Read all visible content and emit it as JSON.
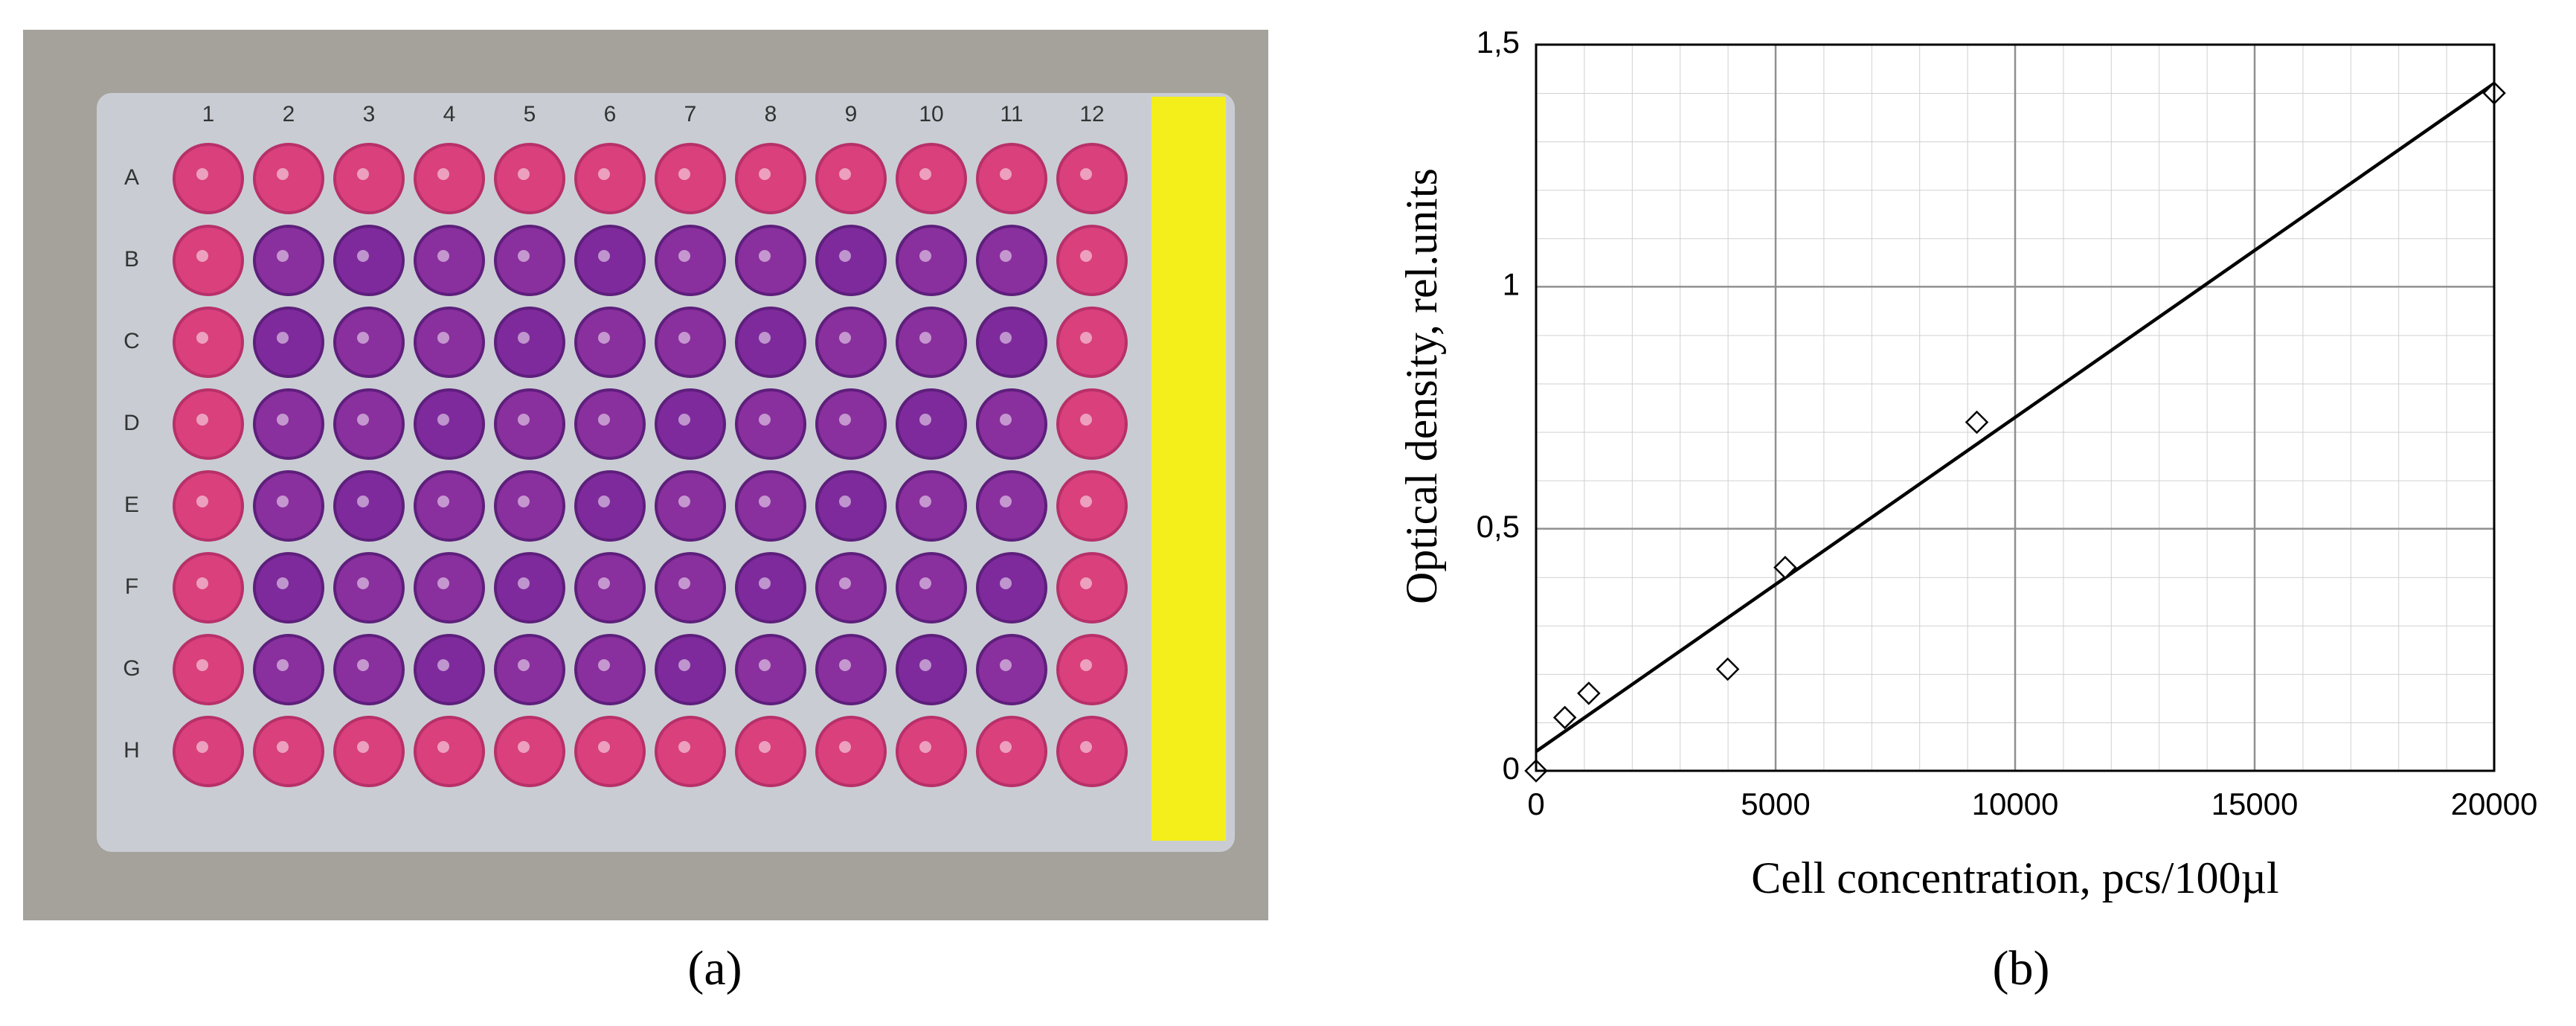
{
  "panel_a": {
    "column_labels": [
      "1",
      "2",
      "3",
      "4",
      "5",
      "6",
      "7",
      "8",
      "9",
      "10",
      "11",
      "12"
    ],
    "row_labels": [
      "A",
      "B",
      "C",
      "D",
      "E",
      "F",
      "G",
      "H"
    ],
    "caption": "(a)"
  },
  "panel_b": {
    "caption": "(b)"
  },
  "chart_data": {
    "type": "scatter",
    "x_label": "Cell concentration, pcs/100µl",
    "y_label": "Optical density, rel.units",
    "x": [
      0,
      600,
      1100,
      4000,
      5200,
      9200,
      20000
    ],
    "values": [
      0,
      0.11,
      0.16,
      0.21,
      0.42,
      0.72,
      1.4
    ],
    "trendline": {
      "x": [
        0,
        20000
      ],
      "values": [
        0.04,
        1.42
      ]
    },
    "xlim": [
      0,
      20000
    ],
    "xticks": [
      0,
      5000,
      10000,
      15000,
      20000
    ],
    "ylim": [
      0,
      1.5
    ],
    "yticks": [
      0,
      {
        "value": 0.5,
        "label": "0,5"
      },
      1,
      {
        "value": 1.5,
        "label": "1,5"
      }
    ],
    "grid": true,
    "color": "#000000"
  }
}
